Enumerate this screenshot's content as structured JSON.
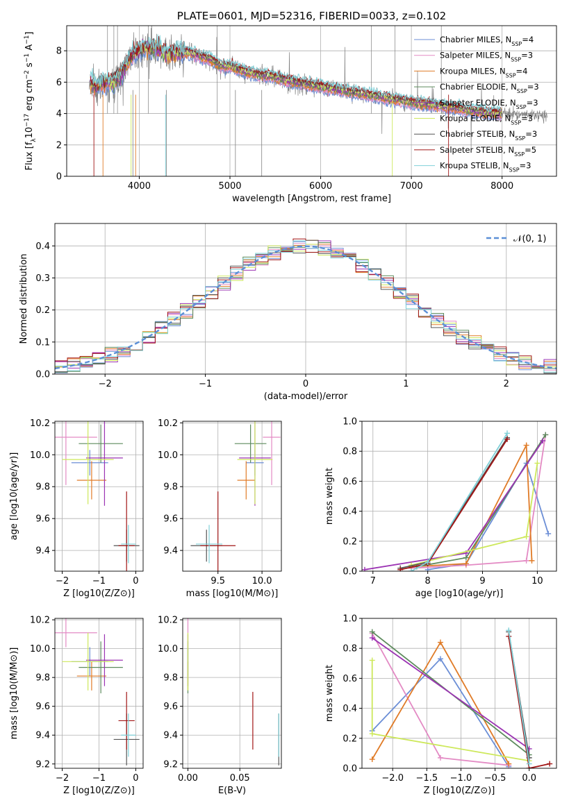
{
  "palette": {
    "chabrier_miles": "#6b8ed6",
    "salpeter_miles": "#e38ac4",
    "kroupa_miles": "#e07b27",
    "chabrier_elodie": "#5c8a5c",
    "salpeter_elodie": "#9b33b3",
    "kroupa_elodie": "#cde85a",
    "chabrier_stelib": "#555555",
    "salpeter_stelib": "#a11515",
    "kroupa_stelib": "#7fd0d8",
    "data": "#808080",
    "normal": "#5b8fd6"
  },
  "chart_data": [
    {
      "id": "spectrum",
      "type": "line",
      "title": "PLATE=0601, MJD=52316, FIBERID=0033, z=0.102",
      "xlabel": "wavelength [Angstrom, rest frame]",
      "ylabel": "Flux [f",
      "xlim": [
        3200,
        8600
      ],
      "ylim": [
        0,
        9.6
      ],
      "xticks": [
        4000,
        5000,
        6000,
        7000,
        8000
      ],
      "yticks": [
        0,
        2,
        4,
        6,
        8
      ],
      "legend": "top-right",
      "series": [
        {
          "name": "Chabrier MILES, N",
          "nssp": "=4"
        },
        {
          "name": "Salpeter MILES, N",
          "nssp": "=3"
        },
        {
          "name": "Kroupa MILES, N",
          "nssp": "=4"
        },
        {
          "name": "Chabrier ELODIE, N",
          "nssp": "=3"
        },
        {
          "name": "Salpeter ELODIE, N",
          "nssp": "=3"
        },
        {
          "name": "Kroupa ELODIE, N",
          "nssp": "=3"
        },
        {
          "name": "Chabrier STELIB, N",
          "nssp": "=3"
        },
        {
          "name": "Salpeter STELIB, N",
          "nssp": "=5"
        },
        {
          "name": "Kroupa STELIB, N",
          "nssp": "=3"
        }
      ],
      "continuum": [
        [
          3450,
          6.1
        ],
        [
          3500,
          5.7
        ],
        [
          3600,
          5.9
        ],
        [
          3700,
          6.0
        ],
        [
          3800,
          6.4
        ],
        [
          3900,
          7.6
        ],
        [
          4000,
          8.0
        ],
        [
          4100,
          8.2
        ],
        [
          4200,
          8.1
        ],
        [
          4300,
          7.8
        ],
        [
          4400,
          7.9
        ],
        [
          4500,
          7.9
        ],
        [
          4600,
          7.8
        ],
        [
          4700,
          7.6
        ],
        [
          4800,
          7.4
        ],
        [
          4900,
          7.0
        ],
        [
          5000,
          7.0
        ],
        [
          5100,
          6.8
        ],
        [
          5200,
          6.6
        ],
        [
          5300,
          6.5
        ],
        [
          5400,
          6.4
        ],
        [
          5500,
          6.3
        ],
        [
          5600,
          6.1
        ],
        [
          5800,
          5.9
        ],
        [
          6000,
          5.7
        ],
        [
          6200,
          5.5
        ],
        [
          6400,
          5.3
        ],
        [
          6600,
          5.1
        ],
        [
          6800,
          4.9
        ],
        [
          7000,
          4.7
        ],
        [
          7200,
          4.55
        ],
        [
          7400,
          4.4
        ],
        [
          7600,
          4.2
        ],
        [
          7800,
          4.05
        ],
        [
          8000,
          3.95
        ],
        [
          8200,
          3.9
        ],
        [
          8500,
          3.85
        ]
      ]
    },
    {
      "id": "residuals",
      "type": "bar",
      "xlabel": "(data-model)/error",
      "ylabel": "Normed distribution",
      "xlim": [
        -2.5,
        2.5
      ],
      "ylim": [
        0,
        0.47
      ],
      "xticks": [
        -2,
        -1,
        0,
        1,
        2
      ],
      "yticks": [
        0.0,
        0.1,
        0.2,
        0.3,
        0.4
      ],
      "legend": "top-right",
      "legend_label": "𝒩(0, 1)",
      "bins": 40
    },
    {
      "id": "age_vs_Z",
      "type": "scatter",
      "xlabel": "Z [log10(Z/Z⊙)]",
      "ylabel": "age [log10(age/yr)]",
      "xlim": [
        -2.2,
        0.2
      ],
      "ylim": [
        9.27,
        10.21
      ],
      "xticks": [
        -2,
        -1,
        0
      ],
      "yticks": [
        9.4,
        9.6,
        9.8,
        10.0,
        10.2
      ],
      "points": [
        {
          "s": "chabrier_miles",
          "x": -1.25,
          "y": 9.95,
          "xe": 0.5,
          "ye": 0.08
        },
        {
          "s": "salpeter_miles",
          "x": -1.9,
          "y": 10.11,
          "xe": 0.85,
          "ye": 0.3
        },
        {
          "s": "kroupa_miles",
          "x": -1.2,
          "y": 9.84,
          "xe": 0.4,
          "ye": 0.12
        },
        {
          "s": "chabrier_elodie",
          "x": -0.95,
          "y": 10.07,
          "xe": 0.6,
          "ye": 0.12
        },
        {
          "s": "salpeter_elodie",
          "x": -0.85,
          "y": 9.98,
          "xe": 0.5,
          "ye": 0.3
        },
        {
          "s": "kroupa_elodie",
          "x": -1.3,
          "y": 9.97,
          "xe": 0.7,
          "ye": 0.28
        },
        {
          "s": "chabrier_stelib",
          "x": -0.25,
          "y": 9.43,
          "xe": 0.35,
          "ye": 0.1
        },
        {
          "s": "salpeter_stelib",
          "x": -0.25,
          "y": 9.43,
          "xe": 0.22,
          "ye": 0.34
        },
        {
          "s": "kroupa_stelib",
          "x": -0.2,
          "y": 9.44,
          "xe": 0.2,
          "ye": 0.12
        }
      ]
    },
    {
      "id": "age_vs_mass",
      "type": "scatter",
      "xlabel": "mass [log10(M/M⊙)]",
      "xlim": [
        9.1,
        10.22
      ],
      "ylim": [
        9.27,
        10.21
      ],
      "xticks": [
        9.5,
        10.0
      ],
      "yticks": [
        9.4,
        9.6,
        9.8,
        10.0,
        10.2
      ],
      "points": [
        {
          "s": "chabrier_miles",
          "x": 9.92,
          "y": 9.95,
          "xe": 0.1,
          "ye": 0.08
        },
        {
          "s": "salpeter_miles",
          "x": 10.11,
          "y": 10.11,
          "xe": 0.1,
          "ye": 0.3
        },
        {
          "s": "kroupa_miles",
          "x": 9.82,
          "y": 9.84,
          "xe": 0.1,
          "ye": 0.12
        },
        {
          "s": "chabrier_elodie",
          "x": 9.87,
          "y": 10.07,
          "xe": 0.18,
          "ye": 0.12
        },
        {
          "s": "salpeter_elodie",
          "x": 9.92,
          "y": 9.98,
          "xe": 0.18,
          "ye": 0.3
        },
        {
          "s": "kroupa_elodie",
          "x": 9.92,
          "y": 9.97,
          "xe": 0.2,
          "ye": 0.28
        },
        {
          "s": "chabrier_stelib",
          "x": 9.37,
          "y": 9.43,
          "xe": 0.18,
          "ye": 0.1
        },
        {
          "s": "salpeter_stelib",
          "x": 9.5,
          "y": 9.43,
          "xe": 0.2,
          "ye": 0.34
        },
        {
          "s": "kroupa_stelib",
          "x": 9.4,
          "y": 9.44,
          "xe": 0.15,
          "ye": 0.12
        }
      ]
    },
    {
      "id": "weight_vs_age",
      "type": "line",
      "xlabel": "age [log10(age/yr)]",
      "ylabel": "mass weight",
      "xlim": [
        6.8,
        10.35
      ],
      "ylim": [
        0,
        1.0
      ],
      "xticks": [
        7,
        8,
        9,
        10
      ],
      "yticks": [
        0.0,
        0.2,
        0.4,
        0.6,
        0.8,
        1.0
      ],
      "series": [
        {
          "s": "chabrier_miles",
          "points": [
            [
              8.0,
              0.01
            ],
            [
              8.7,
              0.05
            ],
            [
              9.8,
              0.72
            ],
            [
              10.2,
              0.25
            ]
          ]
        },
        {
          "s": "salpeter_miles",
          "points": [
            [
              7.7,
              0.02
            ],
            [
              8.7,
              0.04
            ],
            [
              9.8,
              0.07
            ],
            [
              10.15,
              0.91
            ]
          ]
        },
        {
          "s": "kroupa_miles",
          "points": [
            [
              7.7,
              0.03
            ],
            [
              8.7,
              0.05
            ],
            [
              9.8,
              0.84
            ],
            [
              9.9,
              0.07
            ]
          ]
        },
        {
          "s": "chabrier_elodie",
          "points": [
            [
              7.8,
              0.03
            ],
            [
              8.7,
              0.09
            ],
            [
              10.15,
              0.91
            ]
          ]
        },
        {
          "s": "salpeter_elodie",
          "points": [
            [
              6.85,
              0.01
            ],
            [
              8.7,
              0.12
            ],
            [
              10.1,
              0.87
            ]
          ]
        },
        {
          "s": "kroupa_elodie",
          "points": [
            [
              7.7,
              0.04
            ],
            [
              9.8,
              0.23
            ],
            [
              10.0,
              0.72
            ]
          ]
        },
        {
          "s": "chabrier_stelib",
          "points": [
            [
              7.5,
              0.02
            ],
            [
              8.0,
              0.06
            ],
            [
              9.45,
              0.89
            ]
          ]
        },
        {
          "s": "salpeter_stelib",
          "points": [
            [
              7.5,
              0.01
            ],
            [
              8.0,
              0.05
            ],
            [
              9.45,
              0.88
            ]
          ]
        },
        {
          "s": "kroupa_stelib",
          "points": [
            [
              7.7,
              0.0
            ],
            [
              8.0,
              0.06
            ],
            [
              9.45,
              0.92
            ]
          ]
        }
      ]
    },
    {
      "id": "mass_vs_Z",
      "type": "scatter",
      "xlabel": "Z [log10(Z/Z⊙)]",
      "ylabel": "mass [log10(M/M⊙)]",
      "xlim": [
        -2.2,
        0.2
      ],
      "ylim": [
        9.17,
        10.21
      ],
      "xticks": [
        -2,
        -1,
        0
      ],
      "yticks": [
        9.2,
        9.4,
        9.6,
        9.8,
        10.0,
        10.2
      ],
      "points": [
        {
          "s": "chabrier_miles",
          "x": -1.25,
          "y": 9.91,
          "xe": 0.5,
          "ye": 0.1
        },
        {
          "s": "salpeter_miles",
          "x": -1.9,
          "y": 10.11,
          "xe": 0.85,
          "ye": 0.1
        },
        {
          "s": "kroupa_miles",
          "x": -1.2,
          "y": 9.81,
          "xe": 0.4,
          "ye": 0.1
        },
        {
          "s": "chabrier_elodie",
          "x": -0.95,
          "y": 9.87,
          "xe": 0.6,
          "ye": 0.18
        },
        {
          "s": "salpeter_elodie",
          "x": -0.85,
          "y": 9.92,
          "xe": 0.5,
          "ye": 0.18
        },
        {
          "s": "kroupa_elodie",
          "x": -1.3,
          "y": 9.91,
          "xe": 0.7,
          "ye": 0.2
        },
        {
          "s": "chabrier_stelib",
          "x": -0.25,
          "y": 9.37,
          "xe": 0.35,
          "ye": 0.18
        },
        {
          "s": "salpeter_stelib",
          "x": -0.25,
          "y": 9.5,
          "xe": 0.22,
          "ye": 0.2
        },
        {
          "s": "kroupa_stelib",
          "x": -0.2,
          "y": 9.4,
          "xe": 0.2,
          "ye": 0.15
        }
      ]
    },
    {
      "id": "mass_vs_ebv",
      "type": "scatter",
      "xlabel": "E(B-V)",
      "xlim": [
        -0.005,
        0.09
      ],
      "ylim": [
        9.17,
        10.21
      ],
      "xticks": [
        0.0,
        0.05
      ],
      "yticks": [
        9.2,
        9.4,
        9.6,
        9.8,
        10.0,
        10.2
      ],
      "points": [
        {
          "s": "chabrier_miles",
          "x": 0.0,
          "y": 9.91,
          "xe": 0,
          "ye": 0.1
        },
        {
          "s": "salpeter_miles",
          "x": 0.0,
          "y": 10.11,
          "xe": 0,
          "ye": 0.1
        },
        {
          "s": "kroupa_miles",
          "x": 0.0,
          "y": 9.81,
          "xe": 0,
          "ye": 0.1
        },
        {
          "s": "chabrier_elodie",
          "x": 0.0,
          "y": 9.87,
          "xe": 0,
          "ye": 0.18
        },
        {
          "s": "salpeter_elodie",
          "x": 0.0,
          "y": 9.92,
          "xe": 0,
          "ye": 0.18
        },
        {
          "s": "kroupa_elodie",
          "x": 0.0,
          "y": 9.91,
          "xe": 0,
          "ye": 0.2
        },
        {
          "s": "chabrier_stelib",
          "x": 0.0875,
          "y": 9.37,
          "xe": 0,
          "ye": 0.18
        },
        {
          "s": "salpeter_stelib",
          "x": 0.0625,
          "y": 9.5,
          "xe": 0,
          "ye": 0.2
        },
        {
          "s": "kroupa_stelib",
          "x": 0.0875,
          "y": 9.4,
          "xe": 0,
          "ye": 0.15
        }
      ]
    },
    {
      "id": "weight_vs_Z",
      "type": "line",
      "xlabel": "Z [log10(Z/Z⊙)]",
      "ylabel": "mass weight",
      "xlim": [
        -2.45,
        0.4
      ],
      "ylim": [
        0,
        1.0
      ],
      "xticks": [
        -2.0,
        -1.5,
        -1.0,
        -0.5,
        0.0
      ],
      "yticks": [
        0.0,
        0.2,
        0.4,
        0.6,
        0.8,
        1.0
      ],
      "series": [
        {
          "s": "chabrier_miles",
          "points": [
            [
              -2.3,
              0.25
            ],
            [
              -1.3,
              0.73
            ],
            [
              -0.3,
              0.01
            ]
          ]
        },
        {
          "s": "salpeter_miles",
          "points": [
            [
              -2.3,
              0.9
            ],
            [
              -1.3,
              0.07
            ],
            [
              -0.3,
              0.02
            ]
          ]
        },
        {
          "s": "kroupa_miles",
          "points": [
            [
              -2.3,
              0.06
            ],
            [
              -1.3,
              0.84
            ],
            [
              -0.3,
              0.03
            ]
          ]
        },
        {
          "s": "chabrier_elodie",
          "points": [
            [
              -2.3,
              0.91
            ],
            [
              0.0,
              0.09
            ]
          ]
        },
        {
          "s": "salpeter_elodie",
          "points": [
            [
              -2.3,
              0.87
            ],
            [
              0.0,
              0.13
            ]
          ]
        },
        {
          "s": "kroupa_elodie",
          "points": [
            [
              -2.3,
              0.72
            ],
            [
              -2.3,
              0.23
            ],
            [
              0.0,
              0.05
            ]
          ]
        },
        {
          "s": "chabrier_stelib",
          "points": [
            [
              -0.3,
              0.91
            ],
            [
              0.0,
              0.07
            ]
          ]
        },
        {
          "s": "salpeter_stelib",
          "points": [
            [
              -0.3,
              0.88
            ],
            [
              0.0,
              0.0
            ],
            [
              0.3,
              0.03
            ]
          ]
        },
        {
          "s": "kroupa_stelib",
          "points": [
            [
              -0.3,
              0.92
            ],
            [
              0.0,
              0.03
            ]
          ]
        }
      ]
    }
  ]
}
